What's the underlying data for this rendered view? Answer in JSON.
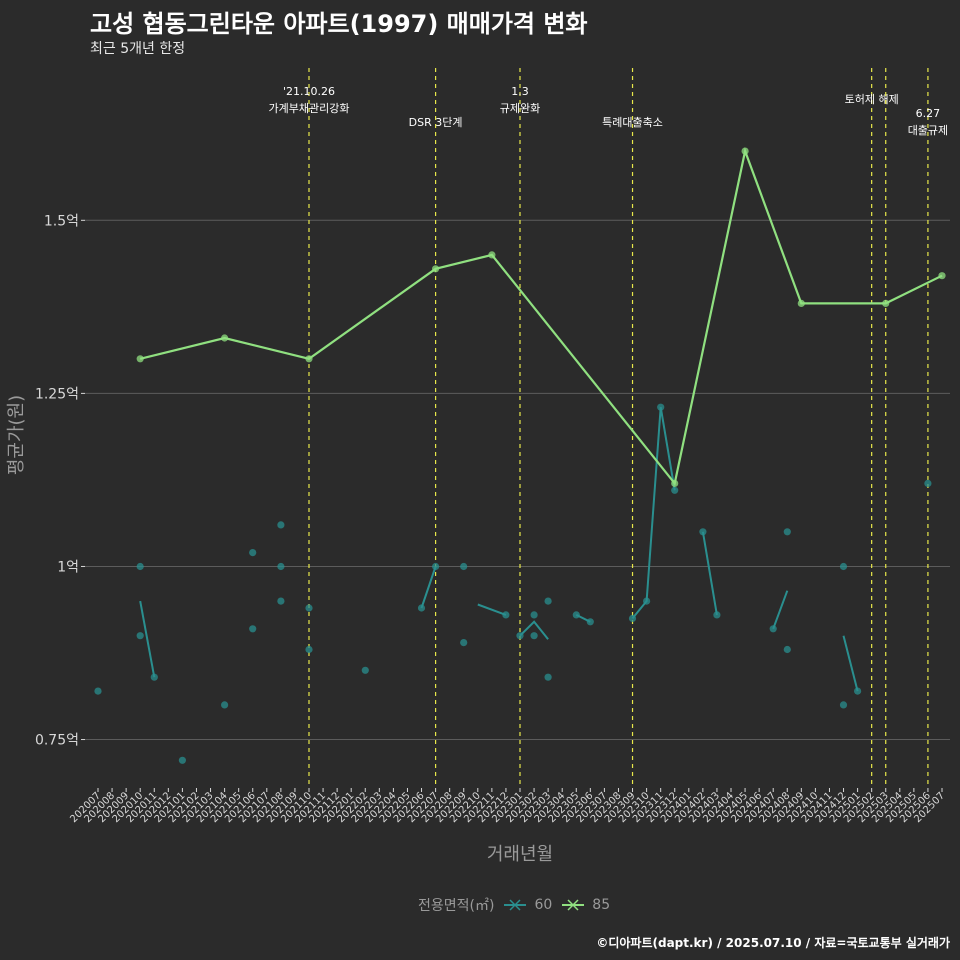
{
  "title": "고성 협동그린타운 아파트(1997) 매매가격 변화",
  "subtitle": "최근 5개년 한정",
  "caption": "©디아파트(dapt.kr) / 2025.07.10 / 자료=국토교통부 실거래가",
  "colors": {
    "background": "#2b2b2b",
    "s60": "#2a8f8f",
    "s85": "#90e080",
    "event": "#e8e84a",
    "grid": "#5c5c5c",
    "axis_text": "#d8d8d8"
  },
  "chart_data": {
    "type": "line",
    "xlabel": "거래년월",
    "ylabel": "평균가(원)",
    "ylim": [
      0.68,
      1.72
    ],
    "yticks": [
      {
        "value": 0.75,
        "label": "0.75억"
      },
      {
        "value": 1.0,
        "label": "1억"
      },
      {
        "value": 1.25,
        "label": "1.25억"
      },
      {
        "value": 1.5,
        "label": "1.5억"
      }
    ],
    "categories": [
      "202007",
      "202008",
      "202009",
      "202010",
      "202011",
      "202012",
      "202101",
      "202102",
      "202103",
      "202104",
      "202105",
      "202106",
      "202107",
      "202108",
      "202109",
      "202110",
      "202111",
      "202112",
      "202201",
      "202202",
      "202203",
      "202204",
      "202205",
      "202206",
      "202207",
      "202208",
      "202209",
      "202210",
      "202211",
      "202212",
      "202301",
      "202302",
      "202303",
      "202304",
      "202305",
      "202306",
      "202307",
      "202308",
      "202309",
      "202310",
      "202311",
      "202312",
      "202401",
      "202402",
      "202403",
      "202404",
      "202405",
      "202406",
      "202407",
      "202408",
      "202409",
      "202410",
      "202411",
      "202412",
      "202501",
      "202502",
      "202503",
      "202504",
      "202505",
      "202506",
      "202507"
    ],
    "legend_title": "전용면적(㎡)",
    "series": [
      {
        "name": "60",
        "line": [
          [
            "202010",
            0.95
          ],
          [
            "202011",
            0.84
          ],
          null,
          [
            "202206",
            0.94
          ],
          [
            "202207",
            1.0
          ],
          null,
          [
            "202210",
            0.945
          ],
          [
            "202212",
            0.93
          ],
          null,
          [
            "202301",
            0.9
          ],
          [
            "202302",
            0.92
          ],
          [
            "202303",
            0.895
          ],
          null,
          [
            "202305",
            0.93
          ],
          [
            "202306",
            0.92
          ],
          null,
          [
            "202309",
            0.925
          ],
          [
            "202310",
            0.95
          ],
          [
            "202311",
            1.23
          ],
          [
            "202312",
            1.11
          ],
          null,
          [
            "202402",
            1.05
          ],
          [
            "202403",
            0.93
          ],
          null,
          [
            "202407",
            0.91
          ],
          [
            "202408",
            0.965
          ],
          null,
          [
            "202412",
            0.9
          ],
          [
            "202501",
            0.82
          ]
        ],
        "points": [
          [
            "202007",
            0.82
          ],
          [
            "202010",
            1.0
          ],
          [
            "202010",
            0.9
          ],
          [
            "202011",
            0.84
          ],
          [
            "202101",
            0.72
          ],
          [
            "202104",
            0.8
          ],
          [
            "202106",
            0.91
          ],
          [
            "202106",
            1.02
          ],
          [
            "202108",
            1.06
          ],
          [
            "202108",
            1.0
          ],
          [
            "202108",
            0.95
          ],
          [
            "202110",
            0.94
          ],
          [
            "202110",
            0.88
          ],
          [
            "202202",
            0.85
          ],
          [
            "202206",
            0.94
          ],
          [
            "202207",
            1.0
          ],
          [
            "202209",
            1.0
          ],
          [
            "202209",
            0.89
          ],
          [
            "202212",
            0.93
          ],
          [
            "202301",
            0.9
          ],
          [
            "202302",
            0.93
          ],
          [
            "202302",
            0.9
          ],
          [
            "202303",
            0.95
          ],
          [
            "202303",
            0.84
          ],
          [
            "202305",
            0.93
          ],
          [
            "202306",
            0.92
          ],
          [
            "202309",
            0.925
          ],
          [
            "202310",
            0.95
          ],
          [
            "202311",
            1.23
          ],
          [
            "202312",
            1.11
          ],
          [
            "202402",
            1.05
          ],
          [
            "202403",
            0.93
          ],
          [
            "202407",
            0.91
          ],
          [
            "202408",
            1.05
          ],
          [
            "202408",
            0.88
          ],
          [
            "202412",
            1.0
          ],
          [
            "202412",
            0.8
          ],
          [
            "202501",
            0.82
          ],
          [
            "202506",
            1.12
          ]
        ]
      },
      {
        "name": "85",
        "line": [
          [
            "202010",
            1.3
          ],
          [
            "202104",
            1.33
          ],
          [
            "202110",
            1.3
          ],
          [
            "202207",
            1.43
          ],
          [
            "202211",
            1.45
          ],
          [
            "202312",
            1.12
          ],
          [
            "202405",
            1.6
          ],
          [
            "202409",
            1.38
          ],
          [
            "202503",
            1.38
          ],
          [
            "202507",
            1.42
          ]
        ],
        "points": [
          [
            "202010",
            1.3
          ],
          [
            "202104",
            1.33
          ],
          [
            "202110",
            1.3
          ],
          [
            "202207",
            1.43
          ],
          [
            "202211",
            1.45
          ],
          [
            "202312",
            1.12
          ],
          [
            "202405",
            1.6
          ],
          [
            "202409",
            1.38
          ],
          [
            "202503",
            1.38
          ],
          [
            "202507",
            1.42
          ]
        ]
      }
    ],
    "events": [
      {
        "x": "202110",
        "lines": [
          "'21.10.26",
          "가계부채관리강화"
        ]
      },
      {
        "x": "202207",
        "lines": [
          "DSR 3단계"
        ]
      },
      {
        "x": "202301",
        "lines": [
          "1.3",
          "규제완화"
        ]
      },
      {
        "x": "202309",
        "lines": [
          "특례대출축소"
        ]
      },
      {
        "x": "202502",
        "lines": [
          "토허제 해제"
        ]
      },
      {
        "x": "202503",
        "lines": []
      },
      {
        "x": "202506",
        "lines": [
          "6.27",
          "대출규제"
        ]
      }
    ]
  }
}
